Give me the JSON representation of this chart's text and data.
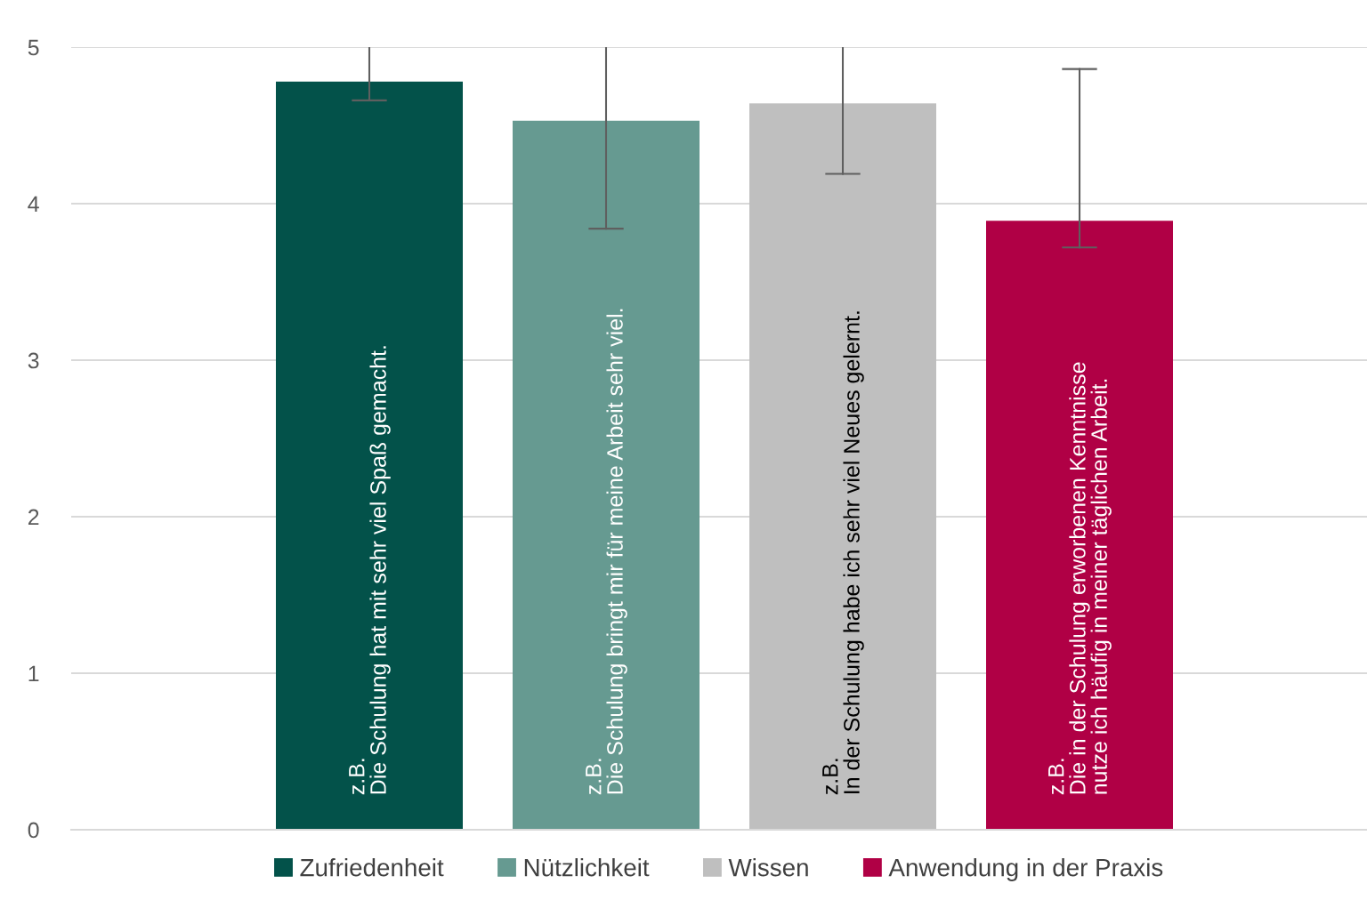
{
  "chart_data": {
    "type": "bar",
    "categories": [
      null
    ],
    "series": [
      {
        "name": "Zufriedenheit",
        "color": "#03524a",
        "values": [
          4.78
        ],
        "errors": [
          [
            4.66,
            5
          ]
        ]
      },
      {
        "name": "Nützlichkeit",
        "color": "#669a91",
        "values": [
          4.53
        ],
        "errors": [
          [
            3.84,
            5
          ]
        ]
      },
      {
        "name": "Wissen",
        "color": "#bfbfbf",
        "values": [
          4.64
        ],
        "errors": [
          [
            4.19,
            5
          ]
        ]
      },
      {
        "name": "Anwendung in der Praxis",
        "color": "#b00045",
        "values": [
          3.89
        ],
        "errors": [
          [
            3.72,
            4.86
          ]
        ]
      }
    ],
    "annotations": [
      "z.B.\nDie Schulung hat mit sehr viel Spaß gemacht.",
      "z.B.\nDie Schulung bringt mir für meine Arbeit sehr viel.",
      "z.B.\nIn der Schulung habe ich sehr viel Neues gelernt.",
      "z.B.\nDie in der Schulung erworbenen Kenntnisse\nnutze ich häufig in meiner täglichen Arbeit."
    ],
    "ylim": [
      0,
      5
    ],
    "yticks": [
      0,
      1,
      2,
      3,
      4,
      5
    ],
    "grid": "y",
    "legend": "bottom",
    "tick_labels": "y"
  }
}
